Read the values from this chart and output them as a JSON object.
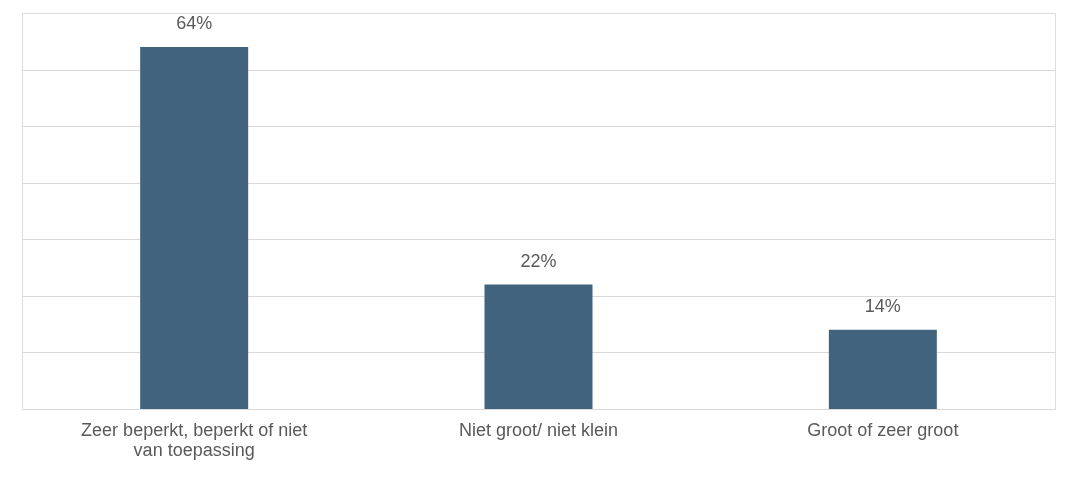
{
  "chart_data": {
    "type": "bar",
    "categories": [
      "Zeer beperkt, beperkt of niet van toepassing",
      "Niet groot/ niet klein",
      "Groot of zeer groot"
    ],
    "values": [
      64,
      22,
      14
    ],
    "color": "#42637d",
    "value_labels": [
      "64%",
      "22%",
      "14%"
    ],
    "ylim": [
      0,
      70
    ],
    "yticks": [
      {
        "value": 0,
        "label": null
      },
      {
        "value": 10,
        "label": null
      },
      {
        "value": 20,
        "label": null
      },
      {
        "value": 30,
        "label": null
      },
      {
        "value": 40,
        "label": null
      },
      {
        "value": 50,
        "label": null
      },
      {
        "value": 60,
        "label": null
      },
      {
        "value": 70,
        "label": null
      }
    ],
    "grid": "y",
    "tick_labels": "x"
  }
}
